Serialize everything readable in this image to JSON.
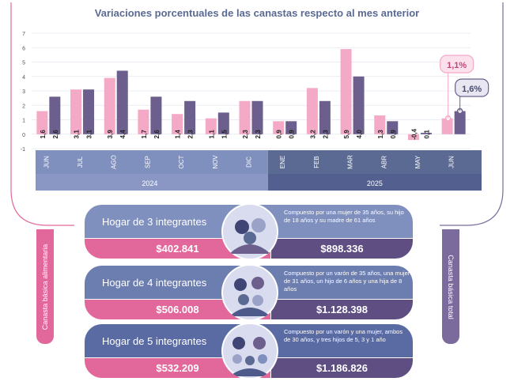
{
  "title": "Variaciones porcentuales de las canastas respecto al mes anterior",
  "colors": {
    "pink": "#f4a9c6",
    "purple": "#6c5f8e",
    "blue_band": "#7f8fbe",
    "dark_band": "#5b6a93",
    "value_pink": "#e2679a",
    "value_purple": "#5e4e82"
  },
  "chart_data": {
    "type": "bar",
    "categories": [
      "JUN",
      "JUL",
      "AGO",
      "SEP",
      "OCT",
      "NOV",
      "DIC",
      "ENE",
      "FEB",
      "MAR",
      "ABR",
      "MAY",
      "JUN"
    ],
    "series": [
      {
        "values": [
          1.6,
          3.1,
          3.9,
          1.7,
          1.4,
          1.1,
          2.3,
          0.9,
          3.2,
          5.9,
          1.3,
          -0.4,
          1.1
        ]
      },
      {
        "values": [
          2.6,
          3.1,
          4.4,
          2.6,
          2.3,
          1.5,
          2.3,
          0.9,
          2.3,
          4.0,
          0.9,
          0.1,
          1.6
        ]
      }
    ],
    "series_labels": [
      [
        "1,6",
        "3,1",
        "3,9",
        "1,7",
        "1,4",
        "1,1",
        "2,3",
        "0,9",
        "3,2",
        "5,9",
        "1,3",
        "-0,4",
        ""
      ],
      [
        "2,6",
        "3,1",
        "4,4",
        "2,6",
        "2,3",
        "1,5",
        "2,3",
        "0,9",
        "2,3",
        "4,0",
        "0,9",
        "0,1",
        ""
      ]
    ],
    "callouts": {
      "pink": "1,1%",
      "purple": "1,6%"
    },
    "ylim": [
      -1,
      7
    ],
    "yticks": [
      "-1",
      "0",
      "1",
      "2",
      "3",
      "4",
      "5",
      "6",
      "7"
    ],
    "years": [
      {
        "label": "2024"
      },
      {
        "label": "2025"
      }
    ],
    "grid": true
  },
  "sides": {
    "left": "Canasta básica alimentaria",
    "right": "Canasta básica total"
  },
  "households": [
    {
      "label": "Hogar de 3 integrantes",
      "desc": "Compuesto por una mujer de 35 años, su hijo de 18 años y su madre de 61 años",
      "cba": "$402.841",
      "cbt": "$898.336"
    },
    {
      "label": "Hogar de 4 integrantes",
      "desc": "Compuesto por un varón de 35 años, una mujer de 31 años, un hijo de 6 años y una hija de 8 años",
      "cba": "$506.008",
      "cbt": "$1.128.398"
    },
    {
      "label": "Hogar de 5 integrantes",
      "desc": "Compuesto por un varón y una mujer, ambos de 30 años, y tres hijos de 5, 3 y 1 año",
      "cba": "$532.209",
      "cbt": "$1.186.826"
    }
  ]
}
